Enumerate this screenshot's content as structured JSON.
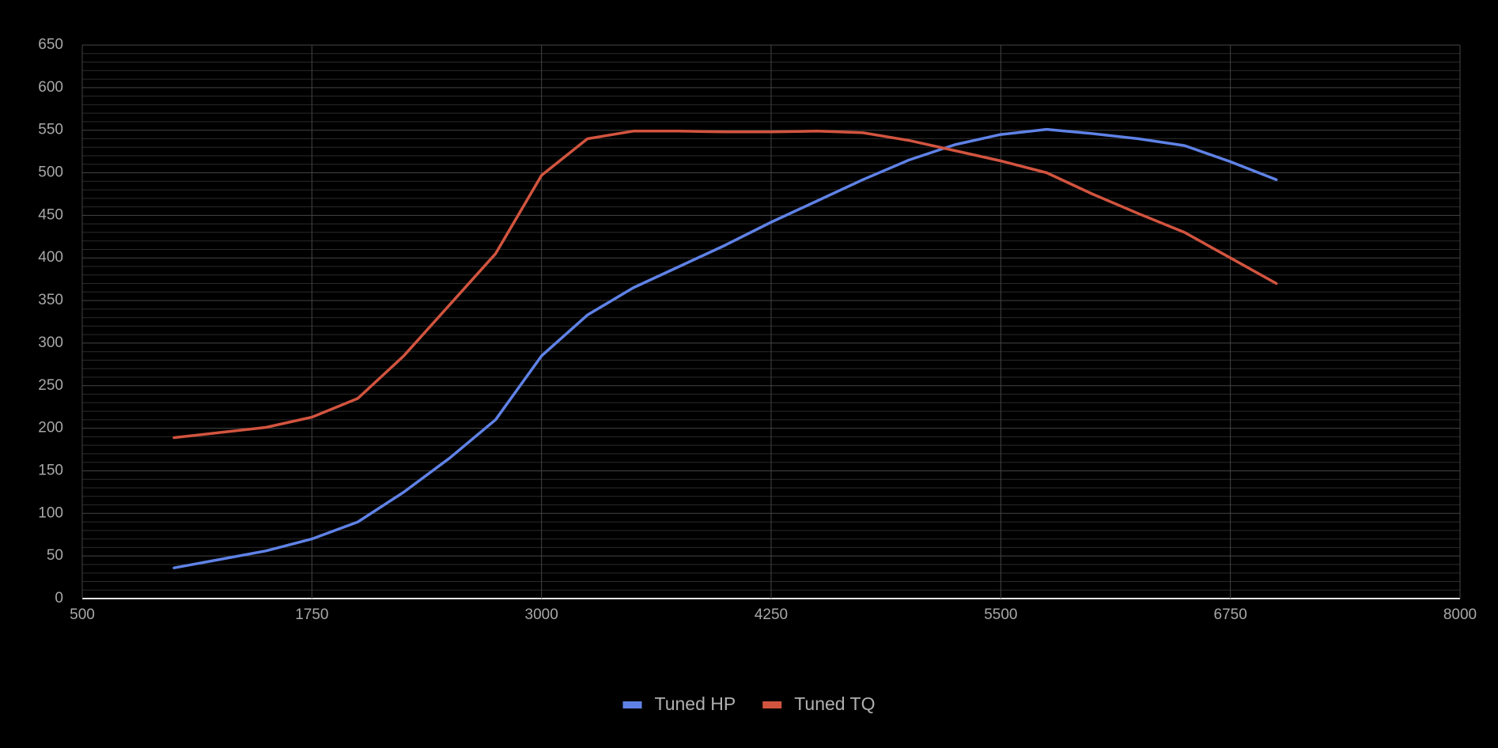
{
  "chart_data": {
    "type": "line",
    "x": [
      1000,
      1250,
      1500,
      1750,
      2000,
      2250,
      2500,
      2750,
      3000,
      3250,
      3500,
      3750,
      4000,
      4250,
      4500,
      4750,
      5000,
      5250,
      5500,
      5750,
      6000,
      6250,
      6500,
      6750,
      7000
    ],
    "series": [
      {
        "name": "Tuned HP",
        "color": "#5f82e6",
        "values": [
          36,
          46,
          56,
          70,
          90,
          125,
          165,
          210,
          285,
          333,
          365,
          390,
          415,
          442,
          467,
          492,
          515,
          533,
          545,
          551,
          546,
          540,
          532,
          513,
          492
        ]
      },
      {
        "name": "Tuned TQ",
        "color": "#d2543f",
        "values": [
          189,
          195,
          201,
          213,
          235,
          285,
          345,
          405,
          497,
          540,
          549,
          549,
          548,
          548,
          549,
          547,
          538,
          526,
          514,
          500,
          475,
          452,
          430,
          400,
          370
        ]
      }
    ],
    "xlim": [
      500,
      8000
    ],
    "xticks": [
      500,
      1750,
      3000,
      4250,
      5500,
      6750,
      8000
    ],
    "ylim": [
      0,
      650
    ],
    "yticks": [
      0,
      50,
      100,
      150,
      200,
      250,
      300,
      350,
      400,
      450,
      500,
      550,
      600,
      650
    ],
    "grid": true,
    "minor_grid": true,
    "legend": "bottom"
  }
}
